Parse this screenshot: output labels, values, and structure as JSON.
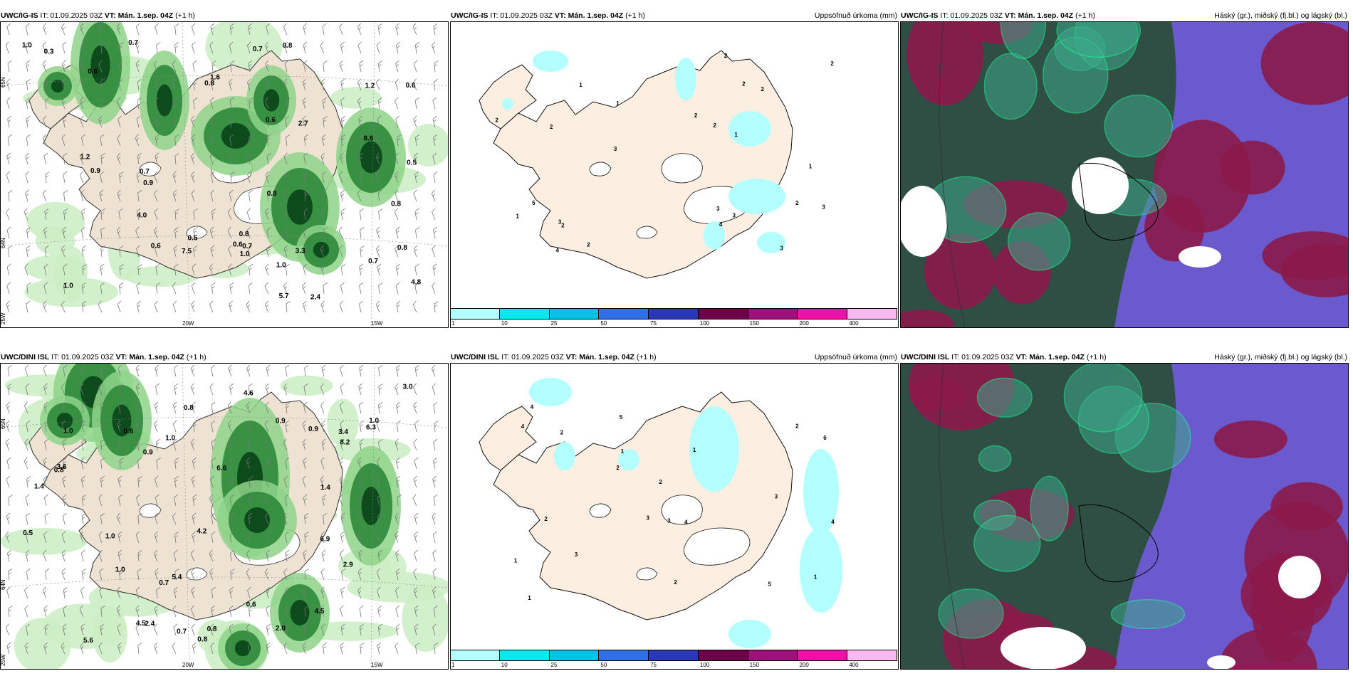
{
  "rows": [
    {
      "model": "UWC/IG-IS",
      "init_label": "IT: 01.09.2025 03Z",
      "valid_label": "VT: Mán. 1.sep. 04Z",
      "lead": "(+1 h)"
    },
    {
      "model": "UWC/DINI ISL",
      "init_label": "IT: 01.09.2025 03Z",
      "valid_label": "VT: Mán. 1.sep. 04Z",
      "lead": "(+1 h)"
    }
  ],
  "panel_titles": {
    "precip_map": "",
    "accum_precip": "Uppsöfnuð úrkoma (mm)",
    "cloud": "Háský (gr.), miðský (fj.bl.) og lágský (bl.)"
  },
  "grid_labels": {
    "lat_65": "65N",
    "lat_64": "64N",
    "lon_25": "25W",
    "lon_20": "20W",
    "lon_15": "15W"
  },
  "colorbar": {
    "ticks": [
      "1",
      "10",
      "25",
      "50",
      "75",
      "100",
      "150",
      "200",
      "400"
    ],
    "colors": [
      "#b3ffff",
      "#00eaf0",
      "#00c2e6",
      "#2f6fe8",
      "#2838b8",
      "#6e0047",
      "#a0107c",
      "#ee10a8",
      "#f8b8f0"
    ]
  },
  "precip_labels_row1": [
    "0.7",
    "0.8",
    "0.8",
    "0.7",
    "3.3",
    "2.7",
    "2.4",
    "4.8",
    "0.6",
    "1.0",
    "1.2",
    "0.7",
    "0.8",
    "0.6",
    "0.5",
    "1.0",
    "0.8",
    "1.2",
    "0.6",
    "0.7",
    "0.6",
    "5.7",
    "4.0",
    "0.3",
    "7.5",
    "8.6",
    "1.6",
    "0.8",
    "0.9",
    "1.0",
    "0.7",
    "0.5",
    "0.6",
    "0.8",
    "0.9",
    "1.0"
  ],
  "precip_labels_row2": [
    "0.7",
    "5.4",
    "4.6",
    "5.6",
    "0.8",
    "4.5",
    "3.0",
    "1.0",
    "0.6",
    "0.8",
    "1.0",
    "0.9",
    "6.3",
    "4.2",
    "3.6",
    "2.0",
    "1.0",
    "0.5",
    "4.5",
    "6.9",
    "8.2",
    "6.6",
    "0.7",
    "2.9",
    "1.0",
    "0.8",
    "1.0",
    "0.9",
    "2.4",
    "3.4",
    "1.4",
    "0.6",
    "0.8",
    "1.4",
    "0.9"
  ],
  "accum_labels_row1": [
    "1",
    "2",
    "2",
    "3",
    "2",
    "2",
    "4",
    "3",
    "1",
    "4",
    "2",
    "3",
    "1",
    "3",
    "2",
    "2",
    "2",
    "5",
    "1",
    "3",
    "2",
    "1",
    "2",
    "2",
    "3"
  ],
  "accum_labels_row2": [
    "2",
    "4",
    "1",
    "3",
    "1",
    "2",
    "5",
    "4",
    "6",
    "4",
    "3",
    "2",
    "1",
    "5",
    "3",
    "4",
    "2",
    "2",
    "1",
    "3",
    "1",
    "2"
  ]
}
